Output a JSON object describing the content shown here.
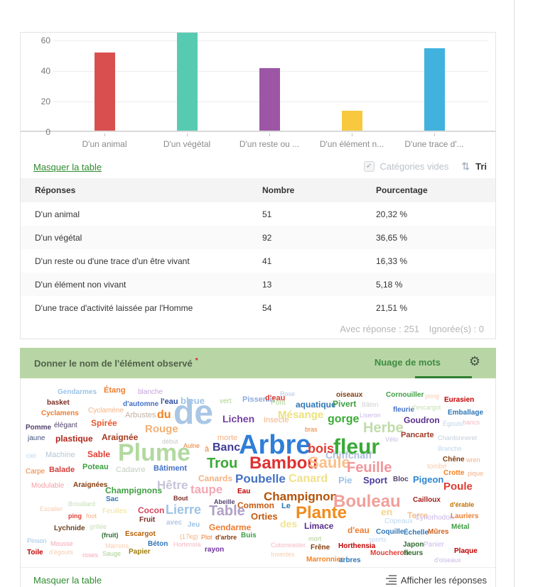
{
  "chart_data": {
    "type": "bar",
    "categories": [
      "D'un animal",
      "D'un végétal",
      "D'un reste ou d'une trace d'un être vivant",
      "D'un élément non vivant",
      "D'une trace d'activité laissée par l'Homme"
    ],
    "values": [
      51,
      92,
      41,
      13,
      54
    ],
    "x_tick_labels": [
      "D'un animal",
      "D'un végétal",
      "D'un reste ou ...",
      "D'un élément n...",
      "D'une trace d'..."
    ],
    "bar_colors": [
      "#d94f4f",
      "#57cbb2",
      "#9c56a5",
      "#f8c93e",
      "#41b1dd"
    ],
    "y_ticks": [
      0,
      20,
      40,
      60
    ],
    "ylim": [
      0,
      95
    ],
    "grid": true,
    "legend": "none"
  },
  "toolbar": {
    "hide_table_label": "Masquer la table",
    "empty_categories_label": "Catégories vides",
    "checkbox_checked": "✔",
    "sort_icon": "⇅",
    "sort_label": "Tri"
  },
  "table": {
    "headers": [
      "Réponses",
      "Nombre",
      "Pourcentage"
    ],
    "rows": [
      [
        "D'un animal",
        "51",
        "20,32 %"
      ],
      [
        "D'un végétal",
        "92",
        "36,65 %"
      ],
      [
        "D'un reste ou d'une trace d'un être vivant",
        "41",
        "16,33 %"
      ],
      [
        "D'un élément non vivant",
        "13",
        "5,18 %"
      ],
      [
        "D'une trace d'activité laissée par l'Homme",
        "54",
        "21,51 %"
      ]
    ],
    "summary_with": "Avec réponse : 251",
    "summary_ignored": "Ignorée(s) : 0"
  },
  "wordcloud_panel": {
    "title": "Donner le nom de l'élément observé",
    "required_marker": "*",
    "tab_label": "Nuage de mots",
    "footer_hide_table": "Masquer la table",
    "footer_show_answers": "Afficher les réponses",
    "header_bg": "#b8d6a5",
    "tab_underline_color": "#2e7d32"
  },
  "cloud_words": [
    [
      "Gendarmes",
      52,
      15,
      10,
      "#9dc3e6",
      1
    ],
    [
      "Étang",
      117,
      12,
      11,
      "#ed7d31",
      1
    ],
    [
      "blanche",
      165,
      15,
      10,
      "#c9a0dc",
      0
    ],
    [
      "basket",
      37,
      30,
      10,
      "#7b2d26",
      1
    ],
    [
      "d'automne",
      144,
      32,
      10,
      "#4472c4",
      1
    ],
    [
      "l'eau",
      197,
      28,
      11,
      "#2e4b9e",
      1
    ],
    [
      "bleue",
      225,
      25,
      13,
      "#9dc3e6",
      1
    ],
    [
      "vert",
      280,
      28,
      10,
      "#a9d18e",
      0
    ],
    [
      "Pissenlit",
      312,
      25,
      11,
      "#8faadc",
      1
    ],
    [
      "d'eau",
      344,
      23,
      11,
      "#e03c31",
      1
    ],
    [
      "Rose",
      365,
      18,
      9,
      "#b4c7e7",
      0
    ],
    [
      "oiseaux",
      444,
      19,
      10,
      "#843c0c",
      1
    ],
    [
      "Cornouiller",
      514,
      19,
      10,
      "#3e9e42",
      1
    ],
    [
      "pong",
      569,
      21,
      9,
      "#f8cbad",
      0
    ],
    [
      "Eurasien",
      596,
      26,
      10,
      "#c00000",
      1
    ],
    [
      "Pont",
      352,
      30,
      10,
      "#a9d18e",
      0
    ],
    [
      "aquatique",
      387,
      31,
      12,
      "#2e75b6",
      1
    ],
    [
      "Pivert",
      439,
      30,
      12,
      "#3e9e42",
      1
    ],
    [
      "Bâton",
      480,
      33,
      9,
      "#cfcfcf",
      0
    ],
    [
      "fleurie",
      524,
      40,
      10,
      "#4472c4",
      1
    ],
    [
      "d'escargot",
      550,
      37,
      9,
      "#c5e0b4",
      0
    ],
    [
      "Emballage",
      601,
      44,
      10,
      "#2e75b6",
      1
    ],
    [
      "Cyclamens",
      29,
      45,
      10,
      "#ed7d31",
      1
    ],
    [
      "Cyclamène",
      95,
      41,
      10,
      "#f4b183",
      0
    ],
    [
      "Arbustes",
      147,
      47,
      11,
      "#bfb0a3",
      0
    ],
    [
      "du",
      192,
      44,
      16,
      "#f5821f",
      1
    ],
    [
      "de",
      215,
      25,
      48,
      "#a9c6e5",
      1
    ],
    [
      "Lichen",
      284,
      50,
      14,
      "#7340a0",
      1
    ],
    [
      "Insecte",
      342,
      54,
      11,
      "#f4b183",
      0
    ],
    [
      "Mésange",
      362,
      44,
      15,
      "#ece27e",
      1
    ],
    [
      "gorge",
      432,
      50,
      16,
      "#3aaa35",
      1
    ],
    [
      "Liseron",
      477,
      48,
      9,
      "#c9b8e8",
      0
    ],
    [
      "Goudron",
      539,
      53,
      12,
      "#5b2d8e",
      1
    ],
    [
      "Égouts",
      594,
      60,
      9,
      "#bdd7ee",
      0
    ],
    [
      "bancs",
      622,
      58,
      9,
      "#f4b8c4",
      0
    ],
    [
      "Pomme",
      7,
      65,
      10,
      "#54436e",
      1
    ],
    [
      "élégant",
      47,
      62,
      10,
      "#54436e",
      0
    ],
    [
      "Spirée",
      99,
      57,
      12,
      "#e8552a",
      1
    ],
    [
      "Rouge",
      175,
      64,
      15,
      "#f2b077",
      1
    ],
    [
      "bras",
      400,
      68,
      9,
      "#ed7d31",
      0
    ],
    [
      "Herbe",
      482,
      60,
      20,
      "#c0dcab",
      1
    ],
    [
      "Pancarte",
      535,
      75,
      11,
      "#9e3a26",
      1
    ],
    [
      "Chardonneret",
      587,
      80,
      9,
      "#c3cfdb",
      0
    ],
    [
      "jaune",
      10,
      80,
      10,
      "#44517e",
      0
    ],
    [
      "plastique",
      49,
      79,
      12,
      "#b02418",
      1
    ],
    [
      "Araignée",
      114,
      77,
      12,
      "#a33b1f",
      1
    ],
    [
      "début",
      199,
      85,
      9,
      "#c8c8c8",
      0
    ],
    [
      "morte",
      277,
      79,
      11,
      "#f4b183",
      0
    ],
    [
      "Vélo",
      513,
      82,
      9,
      "#c9b8e8",
      0
    ],
    [
      "Chiffchaff",
      429,
      101,
      14,
      "#aebedd",
      1
    ],
    [
      "Branche",
      587,
      95,
      9,
      "#bdd7ee",
      0
    ],
    [
      "Aulne",
      229,
      91,
      9,
      "#ed7d31",
      0
    ],
    [
      "à",
      259,
      95,
      11,
      "#ed7d31",
      0
    ],
    [
      "Banc",
      270,
      90,
      16,
      "#3f3a94",
      1
    ],
    [
      "Arbre",
      307,
      75,
      38,
      "#2f7ed8",
      1
    ],
    [
      "bois",
      404,
      90,
      18,
      "#e03c31",
      1
    ],
    [
      "fleur",
      440,
      82,
      30,
      "#3aaa35",
      1
    ],
    [
      "ciel",
      8,
      105,
      9,
      "#bdd7ee",
      0
    ],
    [
      "Machine",
      35,
      103,
      11,
      "#b4c7d9",
      0
    ],
    [
      "Sable",
      94,
      101,
      12,
      "#e03c31",
      1
    ],
    [
      "Plume",
      137,
      88,
      34,
      "#b2d9a0",
      1
    ],
    [
      "Chêne",
      594,
      110,
      10,
      "#843c0c",
      1
    ],
    [
      "wren",
      627,
      111,
      9,
      "#f4b183",
      0
    ],
    [
      "Trou",
      262,
      110,
      20,
      "#3aaa35",
      1
    ],
    [
      "Bambou",
      322,
      108,
      24,
      "#e03131",
      1
    ],
    [
      "Saule",
      405,
      108,
      22,
      "#f9c08a",
      1
    ],
    [
      "Feuille",
      459,
      116,
      20,
      "#f2969b",
      1
    ],
    [
      "tombé",
      572,
      120,
      10,
      "#f8cbad",
      0
    ],
    [
      "Crotte",
      595,
      129,
      10,
      "#f5821f",
      1
    ],
    [
      "pique",
      629,
      130,
      9,
      "#f4b183",
      0
    ],
    [
      "Carpe",
      7,
      127,
      10,
      "#ed7d31",
      0
    ],
    [
      "Balade",
      40,
      124,
      11,
      "#d43f3a",
      1
    ],
    [
      "Poteau",
      87,
      120,
      11,
      "#3e9e42",
      1
    ],
    [
      "Cadavre",
      134,
      124,
      11,
      "#c3cfc0",
      0
    ],
    [
      "Bâtiment",
      187,
      122,
      11,
      "#4472c4",
      1
    ],
    [
      "Canards",
      250,
      135,
      12,
      "#f4b183",
      1
    ],
    [
      "Poubelle",
      302,
      133,
      17,
      "#4472c4",
      1
    ],
    [
      "Canard",
      377,
      134,
      16,
      "#efe18a",
      1
    ],
    [
      "Pie",
      447,
      137,
      13,
      "#9dc3e6",
      1
    ],
    [
      "Sport",
      482,
      137,
      13,
      "#4d3b9e",
      1
    ],
    [
      "Bloc",
      524,
      138,
      10,
      "#54436e",
      1
    ],
    [
      "Pigeon",
      552,
      136,
      13,
      "#2f86d0",
      1
    ],
    [
      "Poule",
      595,
      145,
      15,
      "#e03c31",
      1
    ],
    [
      "Modulable",
      15,
      147,
      10,
      "#f4a0a8",
      0
    ],
    [
      "Araignées",
      74,
      146,
      10,
      "#843c0c",
      1
    ],
    [
      "Champignons",
      119,
      152,
      12,
      "#3e9e42",
      1
    ],
    [
      "Hêtre",
      192,
      142,
      17,
      "#c6c3da",
      1
    ],
    [
      "taupe",
      239,
      148,
      17,
      "#f4a7b4",
      1
    ],
    [
      "Eau",
      305,
      155,
      10,
      "#c00000",
      1
    ],
    [
      "Champignon",
      342,
      158,
      17,
      "#b45309",
      1
    ],
    [
      "Bouleau",
      440,
      162,
      24,
      "#f0a09a",
      1
    ],
    [
      "Cailloux",
      552,
      167,
      10,
      "#a02020",
      1
    ],
    [
      "d'érable",
      604,
      174,
      9,
      "#c07000",
      1
    ],
    [
      "Sac",
      120,
      166,
      10,
      "#2e75b6",
      1
    ],
    [
      "Bout",
      215,
      165,
      9,
      "#7b2d26",
      1
    ],
    [
      "Abeille",
      272,
      170,
      9,
      "#54436e",
      1
    ],
    [
      "Common",
      305,
      173,
      12,
      "#c55a11",
      1
    ],
    [
      "Le",
      367,
      175,
      11,
      "#2e75b6",
      1
    ],
    [
      "Plante",
      387,
      178,
      24,
      "#f08c1e",
      1
    ],
    [
      "en",
      507,
      181,
      14,
      "#f5d58a",
      1
    ],
    [
      "Terre",
      544,
      187,
      12,
      "#f5c08a",
      1
    ],
    [
      "Lauriers",
      605,
      190,
      10,
      "#ed7d31",
      1
    ],
    [
      "Escalier",
      27,
      180,
      9,
      "#f8cbad",
      0
    ],
    [
      "Brouillard",
      67,
      173,
      9,
      "#c5e0b4",
      0
    ],
    [
      "Orties",
      324,
      188,
      13,
      "#c55a11",
      1
    ],
    [
      "des",
      365,
      198,
      14,
      "#f2e394",
      1
    ],
    [
      "Limace",
      399,
      202,
      12,
      "#5b2d8e",
      1
    ],
    [
      "Cynorhodon",
      555,
      192,
      10,
      "#c9b8e8",
      0
    ],
    [
      "Copeaux",
      512,
      197,
      10,
      "#bdd7ee",
      0
    ],
    [
      "Métal",
      606,
      205,
      10,
      "#3e9e42",
      1
    ],
    [
      "ping",
      67,
      190,
      9,
      "#e03c31",
      1
    ],
    [
      "foot",
      92,
      190,
      9,
      "#f4b183",
      0
    ],
    [
      "Feuilles",
      115,
      183,
      10,
      "#f2e394",
      0
    ],
    [
      "Cocon",
      165,
      180,
      12,
      "#d2485f",
      1
    ],
    [
      "Lierre",
      204,
      176,
      18,
      "#9dc3e6",
      1
    ],
    [
      "Table",
      265,
      177,
      20,
      "#b1a0c7",
      1
    ],
    [
      "Fruit",
      167,
      195,
      10,
      "#7b2d26",
      1
    ],
    [
      "avec",
      205,
      199,
      10,
      "#b4c7e7",
      1
    ],
    [
      "Jeu",
      235,
      202,
      10,
      "#9dc3e6",
      1
    ],
    [
      "Gendarme",
      265,
      204,
      12,
      "#ed7d31",
      1
    ],
    [
      "d'eau",
      460,
      208,
      12,
      "#ed7d31",
      1
    ],
    [
      "Coquille",
      500,
      212,
      10,
      "#2e75b6",
      1
    ],
    [
      "Échelle",
      539,
      213,
      10,
      "#2e75b6",
      1
    ],
    [
      "Mûres",
      573,
      212,
      10,
      "#d2601e",
      1
    ],
    [
      "Lychnide",
      47,
      207,
      10,
      "#6b4423",
      1
    ],
    [
      "grillée",
      97,
      205,
      9,
      "#c5e0b4",
      0
    ],
    [
      "(fruit)",
      114,
      217,
      9,
      "#2e6b30",
      1
    ],
    [
      "Escargot",
      147,
      215,
      10,
      "#b45f06",
      1
    ],
    [
      "(17kg)",
      224,
      219,
      9,
      "#f4b183",
      0
    ],
    [
      "Plot",
      254,
      220,
      9,
      "#ed7d31",
      0
    ],
    [
      "d'arbre",
      274,
      220,
      9,
      "#843c0c",
      1
    ],
    [
      "Buis",
      310,
      217,
      10,
      "#3e9e42",
      1
    ],
    [
      "mort",
      405,
      222,
      9,
      "#a9d18e",
      0
    ],
    [
      "sports",
      490,
      223,
      9,
      "#bdd7ee",
      0
    ],
    [
      "Pinson",
      9,
      225,
      9,
      "#9dc3e6",
      0
    ],
    [
      "Mousse",
      42,
      229,
      9,
      "#f4a7b4",
      0
    ],
    [
      "Marrons",
      119,
      232,
      9,
      "#f8cbad",
      0
    ],
    [
      "Béton",
      179,
      229,
      10,
      "#2e75b6",
      1
    ],
    [
      "Hortensia",
      215,
      230,
      9,
      "#f4b8c4",
      0
    ],
    [
      "Japon",
      538,
      230,
      10,
      "#2e6b30",
      1
    ],
    [
      "Panier",
      567,
      230,
      10,
      "#c9b8e8",
      0
    ],
    [
      "Cotoneaster",
      352,
      231,
      9,
      "#f4b8c4",
      0
    ],
    [
      "Frêne",
      408,
      234,
      10,
      "#843c0c",
      1
    ],
    [
      "Horthensia",
      447,
      232,
      10,
      "#c00000",
      1
    ],
    [
      "rayon",
      259,
      237,
      10,
      "#7030a0",
      1
    ],
    [
      "Toile",
      9,
      241,
      10,
      "#c00000",
      1
    ],
    [
      "d'égouts",
      40,
      241,
      9,
      "#f8cbad",
      0
    ],
    [
      "roses",
      87,
      245,
      9,
      "#f4a7b4",
      0
    ],
    [
      "Sauge",
      115,
      243,
      9,
      "#a9d18e",
      0
    ],
    [
      "Papier",
      152,
      240,
      10,
      "#9e7c0c",
      1
    ],
    [
      "Moucheron",
      492,
      242,
      10,
      "#e03c31",
      1
    ],
    [
      "fleurs",
      539,
      242,
      10,
      "#2e6b30",
      1
    ],
    [
      "Plaque",
      610,
      239,
      10,
      "#c00000",
      1
    ],
    [
      "Insectes",
      352,
      244,
      9,
      "#f8cbad",
      0
    ],
    [
      "Marronnier",
      402,
      251,
      10,
      "#f5821f",
      1
    ],
    [
      "arbres",
      448,
      252,
      10,
      "#2e75b6",
      1
    ],
    [
      "d'oiseaux",
      582,
      252,
      9,
      "#c9b8e8",
      0
    ]
  ]
}
